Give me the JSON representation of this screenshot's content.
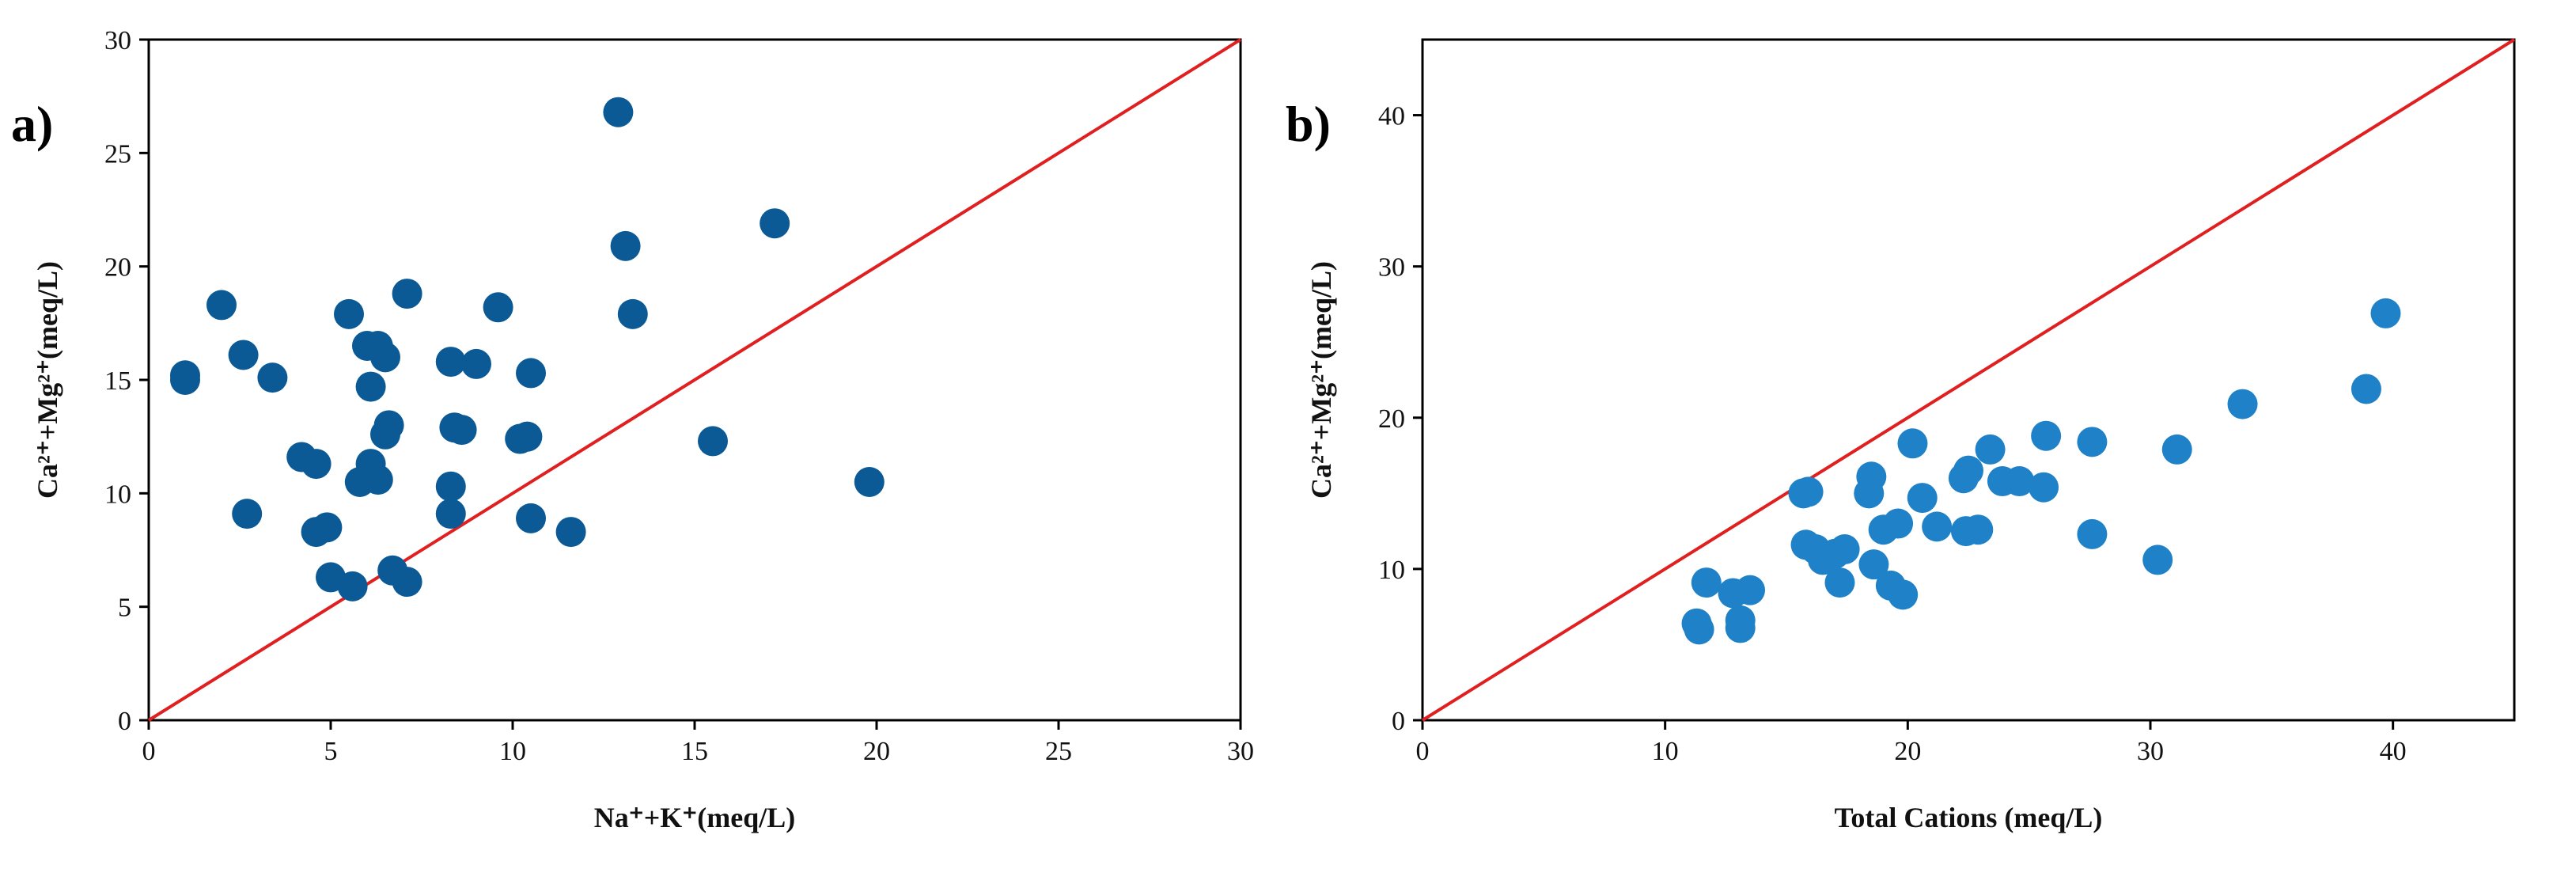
{
  "chart_data": [
    {
      "type": "scatter",
      "panel_label": "a)",
      "xlabel": "Na⁺+K⁺(meq/L)",
      "ylabel": "Ca²⁺+Mg²⁺(meq/L)",
      "xlim": [
        0,
        30
      ],
      "ylim": [
        0,
        30
      ],
      "xticks": [
        0,
        5,
        10,
        15,
        20,
        25,
        30
      ],
      "yticks": [
        0,
        5,
        10,
        15,
        20,
        25,
        30
      ],
      "grid": false,
      "reference_line": {
        "from": [
          0,
          0
        ],
        "to": [
          30,
          30
        ],
        "color": "#e02020"
      },
      "marker_color": "#0b5a96",
      "points": [
        [
          1.0,
          15.0
        ],
        [
          1.0,
          15.2
        ],
        [
          2.0,
          18.3
        ],
        [
          2.6,
          16.1
        ],
        [
          3.4,
          15.1
        ],
        [
          2.7,
          9.1
        ],
        [
          4.2,
          11.6
        ],
        [
          4.6,
          11.3
        ],
        [
          4.6,
          8.3
        ],
        [
          4.9,
          8.5
        ],
        [
          5.0,
          6.3
        ],
        [
          5.6,
          5.9
        ],
        [
          5.5,
          17.9
        ],
        [
          6.0,
          16.5
        ],
        [
          6.3,
          16.5
        ],
        [
          6.5,
          16.0
        ],
        [
          6.1,
          14.7
        ],
        [
          5.8,
          10.5
        ],
        [
          6.1,
          11.3
        ],
        [
          6.3,
          10.6
        ],
        [
          6.5,
          12.6
        ],
        [
          6.6,
          13.0
        ],
        [
          6.7,
          6.6
        ],
        [
          7.1,
          6.1
        ],
        [
          7.1,
          18.8
        ],
        [
          8.3,
          15.8
        ],
        [
          9.0,
          15.7
        ],
        [
          9.6,
          18.2
        ],
        [
          8.3,
          10.3
        ],
        [
          8.3,
          9.1
        ],
        [
          8.4,
          12.9
        ],
        [
          8.6,
          12.8
        ],
        [
          10.2,
          12.4
        ],
        [
          10.4,
          12.5
        ],
        [
          10.5,
          15.3
        ],
        [
          10.5,
          8.9
        ],
        [
          11.6,
          8.3
        ],
        [
          12.9,
          26.8
        ],
        [
          13.1,
          20.9
        ],
        [
          13.3,
          17.9
        ],
        [
          15.5,
          12.3
        ],
        [
          17.2,
          21.9
        ],
        [
          19.8,
          10.5
        ]
      ]
    },
    {
      "type": "scatter",
      "panel_label": "b)",
      "xlabel": "Total Cations (meq/L)",
      "ylabel": "Ca²⁺+Mg²⁺(meq/L)",
      "xlim": [
        0,
        45
      ],
      "ylim": [
        0,
        45
      ],
      "xticks": [
        0,
        10,
        20,
        30,
        40
      ],
      "yticks": [
        0,
        10,
        20,
        30,
        40
      ],
      "grid": false,
      "reference_line": {
        "from": [
          0,
          0
        ],
        "to": [
          45,
          45
        ],
        "color": "#e02020"
      },
      "marker_color": "#1f82c8",
      "points": [
        [
          11.3,
          6.4
        ],
        [
          11.4,
          6.0
        ],
        [
          11.7,
          9.1
        ],
        [
          12.8,
          8.4
        ],
        [
          13.1,
          6.6
        ],
        [
          13.1,
          6.1
        ],
        [
          13.5,
          8.6
        ],
        [
          15.7,
          15.0
        ],
        [
          15.9,
          15.1
        ],
        [
          15.8,
          11.6
        ],
        [
          16.2,
          11.3
        ],
        [
          16.5,
          10.6
        ],
        [
          17.0,
          11.0
        ],
        [
          17.4,
          11.3
        ],
        [
          17.2,
          9.1
        ],
        [
          18.4,
          15.0
        ],
        [
          18.5,
          16.1
        ],
        [
          18.6,
          10.3
        ],
        [
          19.0,
          12.6
        ],
        [
          19.3,
          8.9
        ],
        [
          19.6,
          13.0
        ],
        [
          19.8,
          8.3
        ],
        [
          20.2,
          18.3
        ],
        [
          20.6,
          14.7
        ],
        [
          21.2,
          12.8
        ],
        [
          22.3,
          16.0
        ],
        [
          22.5,
          16.5
        ],
        [
          22.4,
          12.5
        ],
        [
          22.9,
          12.6
        ],
        [
          23.4,
          17.9
        ],
        [
          23.9,
          15.8
        ],
        [
          24.6,
          15.8
        ],
        [
          25.6,
          15.4
        ],
        [
          25.7,
          18.8
        ],
        [
          27.6,
          18.4
        ],
        [
          27.6,
          12.3
        ],
        [
          30.3,
          10.6
        ],
        [
          31.1,
          17.9
        ],
        [
          33.8,
          20.9
        ],
        [
          38.9,
          21.9
        ],
        [
          39.7,
          26.9
        ]
      ]
    }
  ]
}
